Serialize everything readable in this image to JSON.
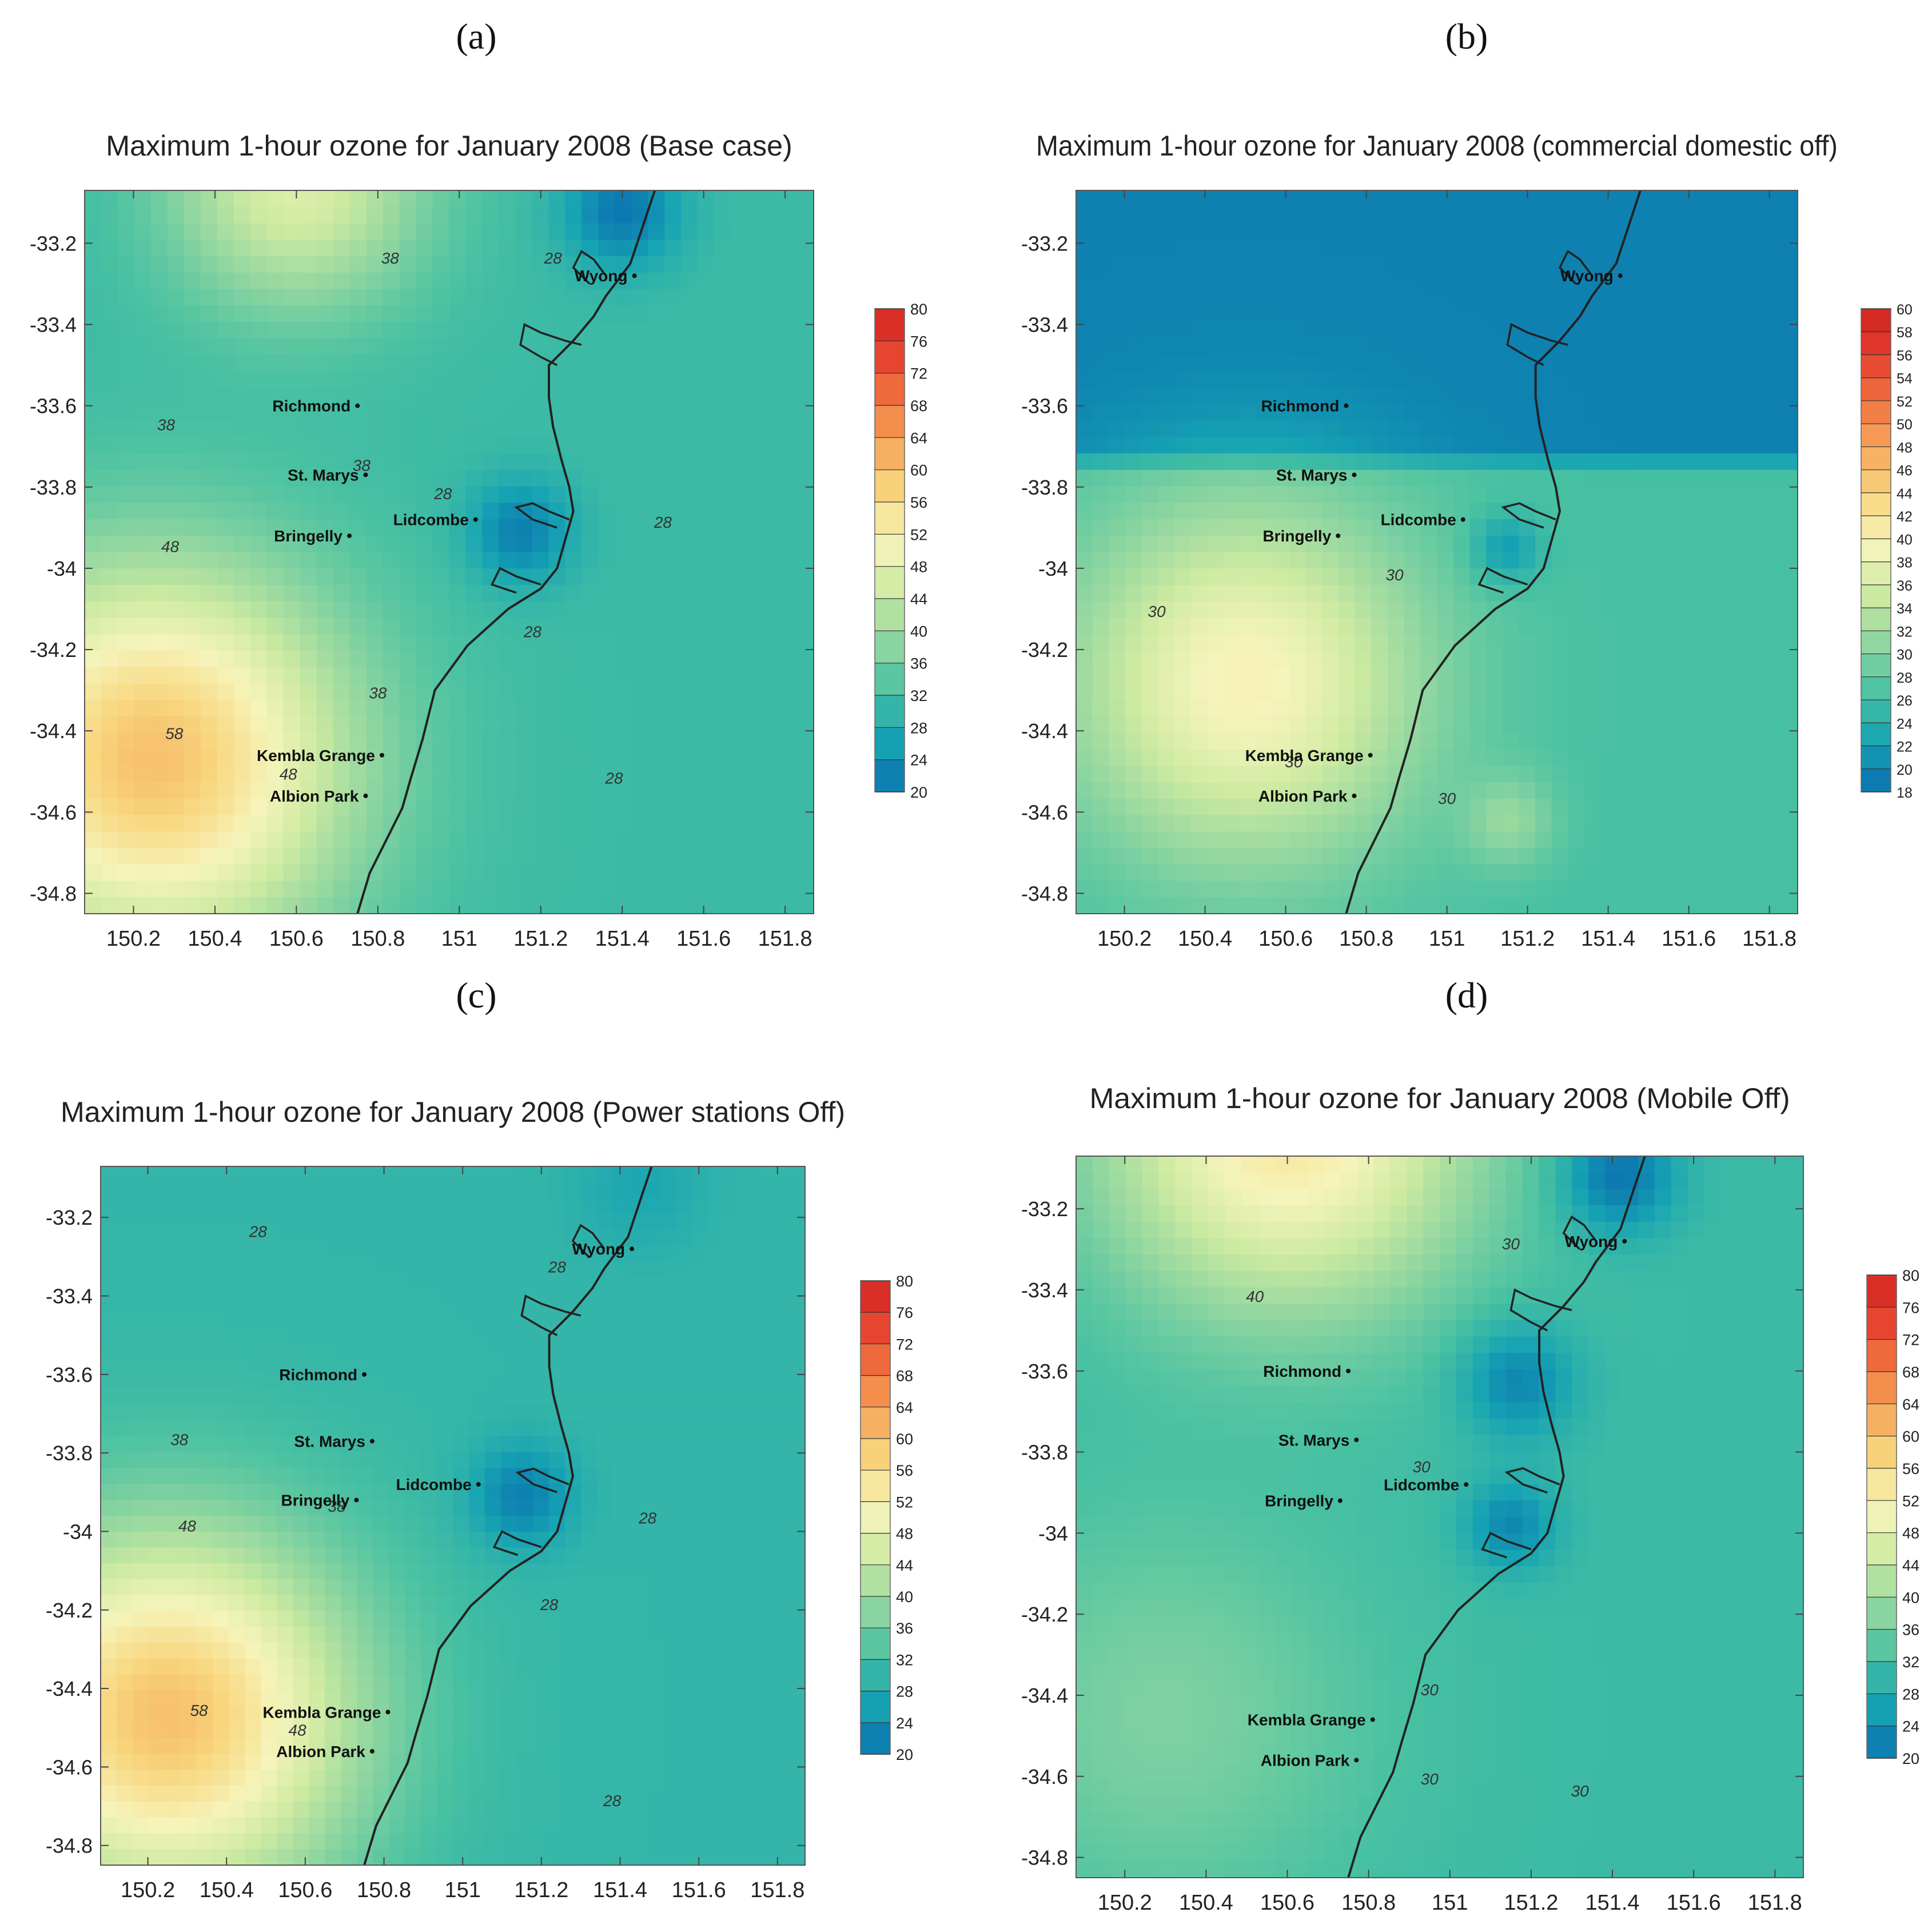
{
  "figure": {
    "colorscale": [
      "#0a6fb0",
      "#16a3b3",
      "#48c1a2",
      "#90d6a0",
      "#cdeaa1",
      "#f6f4bb",
      "#f8d77f",
      "#f6a55a",
      "#ef6d3c",
      "#e2362b",
      "#c9221f"
    ],
    "line_color": "#222222"
  },
  "chart_data": [
    {
      "type": "heatmap",
      "panel_label": "(a)",
      "title": "Maximum 1-hour ozone for January 2008 (Base case)",
      "x_ticks": [
        "150.2",
        "150.4",
        "150.6",
        "150.8",
        "151",
        "151.2",
        "151.4",
        "151.6",
        "151.8"
      ],
      "y_ticks": [
        "-33.2",
        "-33.4",
        "-33.6",
        "-33.8",
        "-34",
        "-34.2",
        "-34.4",
        "-34.6",
        "-34.8"
      ],
      "xlim": [
        150.08,
        151.87
      ],
      "ylim": [
        -34.85,
        -33.07
      ],
      "colorbar_ticks": [
        "80",
        "76",
        "72",
        "68",
        "64",
        "60",
        "56",
        "52",
        "48",
        "44",
        "40",
        "36",
        "32",
        "28",
        "24",
        "20"
      ],
      "colorbar_range": [
        20,
        82
      ],
      "contour_labels": [
        {
          "text": "38",
          "lon": 150.83,
          "lat": -33.25
        },
        {
          "text": "28",
          "lon": 151.23,
          "lat": -33.25
        },
        {
          "text": "38",
          "lon": 150.28,
          "lat": -33.66
        },
        {
          "text": "38",
          "lon": 150.76,
          "lat": -33.76
        },
        {
          "text": "28",
          "lon": 150.96,
          "lat": -33.83
        },
        {
          "text": "28",
          "lon": 151.5,
          "lat": -33.9
        },
        {
          "text": "48",
          "lon": 150.29,
          "lat": -33.96
        },
        {
          "text": "28",
          "lon": 151.18,
          "lat": -34.17
        },
        {
          "text": "38",
          "lon": 150.8,
          "lat": -34.32
        },
        {
          "text": "58",
          "lon": 150.3,
          "lat": -34.42
        },
        {
          "text": "48",
          "lon": 150.58,
          "lat": -34.52
        },
        {
          "text": "28",
          "lon": 151.38,
          "lat": -34.53
        }
      ],
      "cities": [
        {
          "name": "Wyong",
          "lon": 151.43,
          "lat": -33.28
        },
        {
          "name": "Richmond",
          "lon": 150.75,
          "lat": -33.6
        },
        {
          "name": "St. Marys",
          "lon": 150.77,
          "lat": -33.77
        },
        {
          "name": "Lidcombe",
          "lon": 151.04,
          "lat": -33.88
        },
        {
          "name": "Bringelly",
          "lon": 150.73,
          "lat": -33.92
        },
        {
          "name": "Kembla Grange",
          "lon": 150.81,
          "lat": -34.46
        },
        {
          "name": "Albion Park",
          "lon": 150.77,
          "lat": -34.56
        }
      ],
      "fields": [
        {
          "lon": 150.25,
          "lat": -34.47,
          "peak": 60,
          "spread": 0.33
        },
        {
          "lon": 150.6,
          "lat": -33.05,
          "peak": 47,
          "spread": 0.22
        },
        {
          "lon": 151.15,
          "lat": -33.91,
          "peak": 22,
          "spread": 0.09
        },
        {
          "lon": 151.4,
          "lat": -33.12,
          "peak": 21,
          "spread": 0.1
        }
      ],
      "background": 31
    },
    {
      "type": "heatmap",
      "panel_label": "(b)",
      "title": "Maximum 1-hour ozone for January 2008 (commercial domestic off)",
      "x_ticks": [
        "150.2",
        "150.4",
        "150.6",
        "150.8",
        "151",
        "151.2",
        "151.4",
        "151.6",
        "151.8"
      ],
      "y_ticks": [
        "-33.2",
        "-33.4",
        "-33.6",
        "-33.8",
        "-34",
        "-34.2",
        "-34.4",
        "-34.6",
        "-34.8"
      ],
      "xlim": [
        150.08,
        151.87
      ],
      "ylim": [
        -34.85,
        -33.07
      ],
      "colorbar_ticks": [
        "60",
        "58",
        "56",
        "54",
        "52",
        "50",
        "48",
        "46",
        "44",
        "42",
        "40",
        "38",
        "36",
        "34",
        "32",
        "30",
        "28",
        "26",
        "24",
        "22",
        "20",
        "18"
      ],
      "colorbar_range": [
        18,
        61
      ],
      "contour_labels": [
        {
          "text": "30",
          "lon": 150.87,
          "lat": -34.03
        },
        {
          "text": "30",
          "lon": 150.28,
          "lat": -34.12
        },
        {
          "text": "30",
          "lon": 150.62,
          "lat": -34.49
        },
        {
          "text": "30",
          "lon": 151.0,
          "lat": -34.58
        }
      ],
      "cities": [
        {
          "name": "Wyong",
          "lon": 151.43,
          "lat": -33.28
        },
        {
          "name": "Richmond",
          "lon": 150.75,
          "lat": -33.6
        },
        {
          "name": "St. Marys",
          "lon": 150.77,
          "lat": -33.77
        },
        {
          "name": "Lidcombe",
          "lon": 151.04,
          "lat": -33.88
        },
        {
          "name": "Bringelly",
          "lon": 150.73,
          "lat": -33.92
        },
        {
          "name": "Kembla Grange",
          "lon": 150.81,
          "lat": -34.46
        },
        {
          "name": "Albion Park",
          "lon": 150.77,
          "lat": -34.56
        }
      ],
      "fields": [
        {
          "lon": 150.5,
          "lat": -34.28,
          "peak": 40,
          "spread": 0.3
        },
        {
          "lon": 151.15,
          "lat": -34.62,
          "peak": 31.5,
          "spread": 0.08
        },
        {
          "lon": 151.15,
          "lat": -33.95,
          "peak": 22,
          "spread": 0.06
        }
      ],
      "background": 26.5,
      "low_region_lat": -33.78,
      "low_value": 19.5
    },
    {
      "type": "heatmap",
      "panel_label": "(c)",
      "title": "Maximum 1-hour ozone for January 2008 (Power stations Off)",
      "x_ticks": [
        "150.2",
        "150.4",
        "150.6",
        "150.8",
        "151",
        "151.2",
        "151.4",
        "151.6",
        "151.8"
      ],
      "y_ticks": [
        "-33.2",
        "-33.4",
        "-33.6",
        "-33.8",
        "-34",
        "-34.2",
        "-34.4",
        "-34.6",
        "-34.8"
      ],
      "xlim": [
        150.08,
        151.87
      ],
      "ylim": [
        -34.85,
        -33.07
      ],
      "colorbar_ticks": [
        "80",
        "76",
        "72",
        "68",
        "64",
        "60",
        "56",
        "52",
        "48",
        "44",
        "40",
        "36",
        "32",
        "28",
        "24",
        "20"
      ],
      "colorbar_range": [
        20,
        82
      ],
      "contour_labels": [
        {
          "text": "28",
          "lon": 150.48,
          "lat": -33.25
        },
        {
          "text": "28",
          "lon": 151.24,
          "lat": -33.34
        },
        {
          "text": "38",
          "lon": 150.28,
          "lat": -33.78
        },
        {
          "text": "38",
          "lon": 150.68,
          "lat": -33.95
        },
        {
          "text": "48",
          "lon": 150.3,
          "lat": -34.0
        },
        {
          "text": "28",
          "lon": 151.47,
          "lat": -33.98
        },
        {
          "text": "28",
          "lon": 151.22,
          "lat": -34.2
        },
        {
          "text": "58",
          "lon": 150.33,
          "lat": -34.47
        },
        {
          "text": "48",
          "lon": 150.58,
          "lat": -34.52
        },
        {
          "text": "28",
          "lon": 151.38,
          "lat": -34.7
        }
      ],
      "cities": [
        {
          "name": "Wyong",
          "lon": 151.43,
          "lat": -33.28
        },
        {
          "name": "Richmond",
          "lon": 150.75,
          "lat": -33.6
        },
        {
          "name": "St. Marys",
          "lon": 150.77,
          "lat": -33.77
        },
        {
          "name": "Lidcombe",
          "lon": 151.04,
          "lat": -33.88
        },
        {
          "name": "Bringelly",
          "lon": 150.73,
          "lat": -33.92
        },
        {
          "name": "Kembla Grange",
          "lon": 150.81,
          "lat": -34.46
        },
        {
          "name": "Albion Park",
          "lon": 150.77,
          "lat": -34.56
        }
      ],
      "fields": [
        {
          "lon": 150.25,
          "lat": -34.47,
          "peak": 60,
          "spread": 0.33
        },
        {
          "lon": 151.15,
          "lat": -33.91,
          "peak": 22,
          "spread": 0.09
        },
        {
          "lon": 151.45,
          "lat": -33.12,
          "peak": 27,
          "spread": 0.12
        }
      ],
      "background": 30
    },
    {
      "type": "heatmap",
      "panel_label": "(d)",
      "title": "Maximum 1-hour ozone for January 2008 (Mobile Off)",
      "x_ticks": [
        "150.2",
        "150.4",
        "150.6",
        "150.8",
        "151",
        "151.2",
        "151.4",
        "151.6",
        "151.8"
      ],
      "y_ticks": [
        "-33.2",
        "-33.4",
        "-33.6",
        "-33.8",
        "-34",
        "-34.2",
        "-34.4",
        "-34.6",
        "-34.8"
      ],
      "xlim": [
        150.08,
        151.87
      ],
      "ylim": [
        -34.85,
        -33.07
      ],
      "colorbar_ticks": [
        "80",
        "76",
        "72",
        "68",
        "64",
        "60",
        "56",
        "52",
        "48",
        "44",
        "40",
        "36",
        "32",
        "28",
        "24",
        "20"
      ],
      "colorbar_range": [
        20,
        82
      ],
      "contour_labels": [
        {
          "text": "30",
          "lon": 151.15,
          "lat": -33.3
        },
        {
          "text": "40",
          "lon": 150.52,
          "lat": -33.43
        },
        {
          "text": "30",
          "lon": 150.93,
          "lat": -33.85
        },
        {
          "text": "30",
          "lon": 150.95,
          "lat": -34.4
        },
        {
          "text": "30",
          "lon": 150.95,
          "lat": -34.62
        },
        {
          "text": "30",
          "lon": 151.32,
          "lat": -34.65
        }
      ],
      "cities": [
        {
          "name": "Wyong",
          "lon": 151.43,
          "lat": -33.28
        },
        {
          "name": "Richmond",
          "lon": 150.75,
          "lat": -33.6
        },
        {
          "name": "St. Marys",
          "lon": 150.77,
          "lat": -33.77
        },
        {
          "name": "Lidcombe",
          "lon": 151.04,
          "lat": -33.88
        },
        {
          "name": "Bringelly",
          "lon": 150.73,
          "lat": -33.92
        },
        {
          "name": "Kembla Grange",
          "lon": 150.81,
          "lat": -34.46
        },
        {
          "name": "Albion Park",
          "lon": 150.77,
          "lat": -34.56
        }
      ],
      "fields": [
        {
          "lon": 150.6,
          "lat": -33.0,
          "peak": 54,
          "spread": 0.32
        },
        {
          "lon": 150.3,
          "lat": -34.45,
          "peak": 37,
          "spread": 0.35
        },
        {
          "lon": 151.17,
          "lat": -33.63,
          "peak": 23,
          "spread": 0.1
        },
        {
          "lon": 151.15,
          "lat": -33.98,
          "peak": 23,
          "spread": 0.08
        },
        {
          "lon": 151.42,
          "lat": -33.12,
          "peak": 21,
          "spread": 0.1
        }
      ],
      "background": 31
    }
  ]
}
